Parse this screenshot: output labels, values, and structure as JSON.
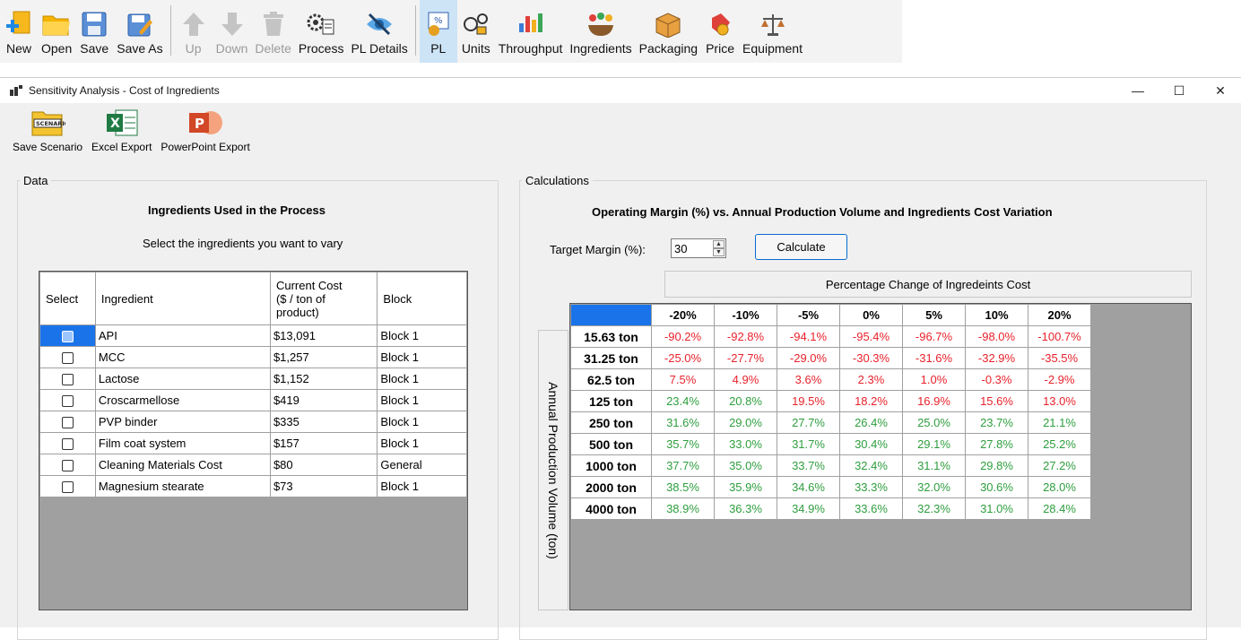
{
  "main_toolbar": {
    "buttons": [
      {
        "label": "New",
        "icon": "new-file-icon",
        "enabled": true
      },
      {
        "label": "Open",
        "icon": "folder-icon",
        "enabled": true
      },
      {
        "label": "Save",
        "icon": "save-icon",
        "enabled": true
      },
      {
        "label": "Save As",
        "icon": "save-as-icon",
        "enabled": true
      },
      {
        "label": "Up",
        "icon": "arrow-up-icon",
        "enabled": false
      },
      {
        "label": "Down",
        "icon": "arrow-down-icon",
        "enabled": false
      },
      {
        "label": "Delete",
        "icon": "trash-icon",
        "enabled": false
      },
      {
        "label": "Process",
        "icon": "process-gears-icon",
        "enabled": true
      },
      {
        "label": "PL Details",
        "icon": "eye-hidden-icon",
        "enabled": true
      },
      {
        "label": "PL",
        "icon": "pl-icon",
        "enabled": true
      },
      {
        "label": "Units",
        "icon": "units-icon",
        "enabled": true
      },
      {
        "label": "Throughput",
        "icon": "throughput-chart-icon",
        "enabled": true
      },
      {
        "label": "Ingredients",
        "icon": "ingredients-icon",
        "enabled": true
      },
      {
        "label": "Packaging",
        "icon": "package-box-icon",
        "enabled": true
      },
      {
        "label": "Price",
        "icon": "price-tag-icon",
        "enabled": true
      },
      {
        "label": "Equipment",
        "icon": "equipment-scale-icon",
        "enabled": true
      }
    ]
  },
  "window": {
    "title": "Sensitivity Analysis - Cost of Ingredients",
    "controls": {
      "minimize": "—",
      "maximize": "☐",
      "close": "✕"
    },
    "toolbar": {
      "save_scenario": "Save Scenario",
      "scenario_icon_text": "SCENARIO",
      "excel_export": "Excel Export",
      "powerpoint_export": "PowerPoint Export"
    }
  },
  "data_panel": {
    "legend": "Data",
    "heading": "Ingredients Used in the Process",
    "instruction": "Select the ingredients you want to vary",
    "columns": {
      "select": "Select",
      "ingredient": "Ingredient",
      "cost_line1": "Current Cost",
      "cost_line2": "($ / ton of",
      "cost_line3": "product)",
      "block": "Block"
    },
    "rows": [
      {
        "selected": true,
        "ingredient": "API",
        "cost": "$13,091",
        "block": "Block 1"
      },
      {
        "selected": false,
        "ingredient": "MCC",
        "cost": "$1,257",
        "block": "Block 1"
      },
      {
        "selected": false,
        "ingredient": "Lactose",
        "cost": "$1,152",
        "block": "Block 1"
      },
      {
        "selected": false,
        "ingredient": "Croscarmellose",
        "cost": "$419",
        "block": "Block 1"
      },
      {
        "selected": false,
        "ingredient": "PVP binder",
        "cost": "$335",
        "block": "Block 1"
      },
      {
        "selected": false,
        "ingredient": "Film coat system",
        "cost": "$157",
        "block": "Block 1"
      },
      {
        "selected": false,
        "ingredient": "Cleaning Materials Cost",
        "cost": "$80",
        "block": "General"
      },
      {
        "selected": false,
        "ingredient": "Magnesium stearate",
        "cost": "$73",
        "block": "Block 1"
      }
    ]
  },
  "calc_panel": {
    "legend": "Calculations",
    "heading": "Operating Margin (%) vs. Annual Production Volume and Ingredients Cost Variation",
    "target_label": "Target Margin (%):",
    "target_value": "30",
    "calculate_label": "Calculate",
    "pct_header": "Percentage Change of Ingredeints Cost",
    "volume_header": "Annual Production Volume (ton)",
    "columns": [
      "-20%",
      "-10%",
      "-5%",
      "0%",
      "5%",
      "10%",
      "20%"
    ],
    "rows": [
      {
        "label": "15.63 ton",
        "values": [
          "-90.2%",
          "-92.8%",
          "-94.1%",
          "-95.4%",
          "-96.7%",
          "-98.0%",
          "-100.7%"
        ]
      },
      {
        "label": "31.25 ton",
        "values": [
          "-25.0%",
          "-27.7%",
          "-29.0%",
          "-30.3%",
          "-31.6%",
          "-32.9%",
          "-35.5%"
        ]
      },
      {
        "label": "62.5 ton",
        "values": [
          "7.5%",
          "4.9%",
          "3.6%",
          "2.3%",
          "1.0%",
          "-0.3%",
          "-2.9%"
        ]
      },
      {
        "label": "125 ton",
        "values": [
          "23.4%",
          "20.8%",
          "19.5%",
          "18.2%",
          "16.9%",
          "15.6%",
          "13.0%"
        ]
      },
      {
        "label": "250 ton",
        "values": [
          "31.6%",
          "29.0%",
          "27.7%",
          "26.4%",
          "25.0%",
          "23.7%",
          "21.1%"
        ]
      },
      {
        "label": "500 ton",
        "values": [
          "35.7%",
          "33.0%",
          "31.7%",
          "30.4%",
          "29.1%",
          "27.8%",
          "25.2%"
        ]
      },
      {
        "label": "1000 ton",
        "values": [
          "37.7%",
          "35.0%",
          "33.7%",
          "32.4%",
          "31.1%",
          "29.8%",
          "27.2%"
        ]
      },
      {
        "label": "2000 ton",
        "values": [
          "38.5%",
          "35.9%",
          "34.6%",
          "33.3%",
          "32.0%",
          "30.6%",
          "28.0%"
        ]
      },
      {
        "label": "4000 ton",
        "values": [
          "38.9%",
          "36.3%",
          "34.9%",
          "33.6%",
          "32.3%",
          "31.0%",
          "28.4%"
        ]
      }
    ],
    "colors": {
      "below_target": "#e8222b",
      "above_target": "#2e9e3e"
    }
  }
}
